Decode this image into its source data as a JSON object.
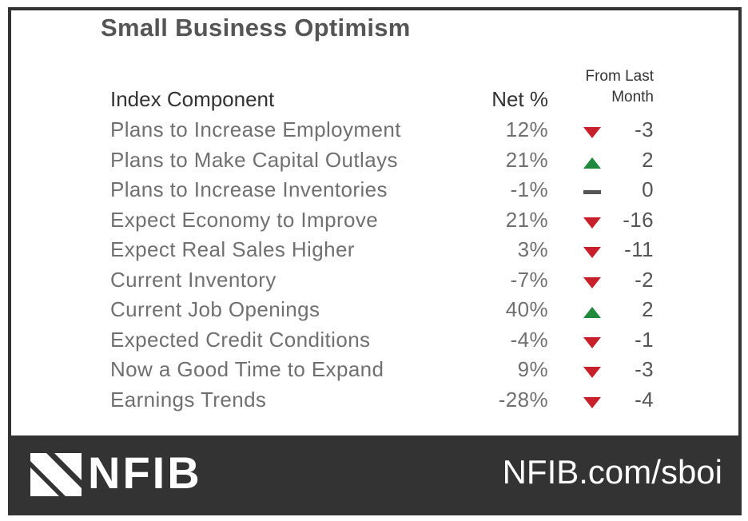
{
  "title": "Small Business Optimism",
  "header": {
    "component": "Index Component",
    "net": "Net %",
    "from_last": "From Last",
    "month": "Month"
  },
  "rows": [
    {
      "component": "Plans to Increase Employment",
      "net": "12%",
      "change": "-3",
      "direction": "down"
    },
    {
      "component": "Plans to Make Capital Outlays",
      "net": "21%",
      "change": "2",
      "direction": "up"
    },
    {
      "component": "Plans to Increase Inventories",
      "net": "-1%",
      "change": "0",
      "direction": "flat"
    },
    {
      "component": "Expect Economy to Improve",
      "net": "21%",
      "change": "-16",
      "direction": "down"
    },
    {
      "component": "Expect Real Sales Higher",
      "net": "3%",
      "change": "-11",
      "direction": "down"
    },
    {
      "component": "Current Inventory",
      "net": "-7%",
      "change": "-2",
      "direction": "down"
    },
    {
      "component": "Current Job Openings",
      "net": "40%",
      "change": "2",
      "direction": "up"
    },
    {
      "component": "Expected Credit Conditions",
      "net": "-4%",
      "change": "-1",
      "direction": "down"
    },
    {
      "component": "Now a Good Time to Expand",
      "net": "9%",
      "change": "-3",
      "direction": "down"
    },
    {
      "component": "Earnings Trends",
      "net": "-28%",
      "change": "-4",
      "direction": "down"
    }
  ],
  "footer": {
    "logo": "NFIB",
    "site": "NFIB.com/sboi"
  },
  "colors": {
    "down": "#c8202a",
    "up": "#1e8a3c",
    "flat": "#555555",
    "footer_bg": "#333333"
  }
}
